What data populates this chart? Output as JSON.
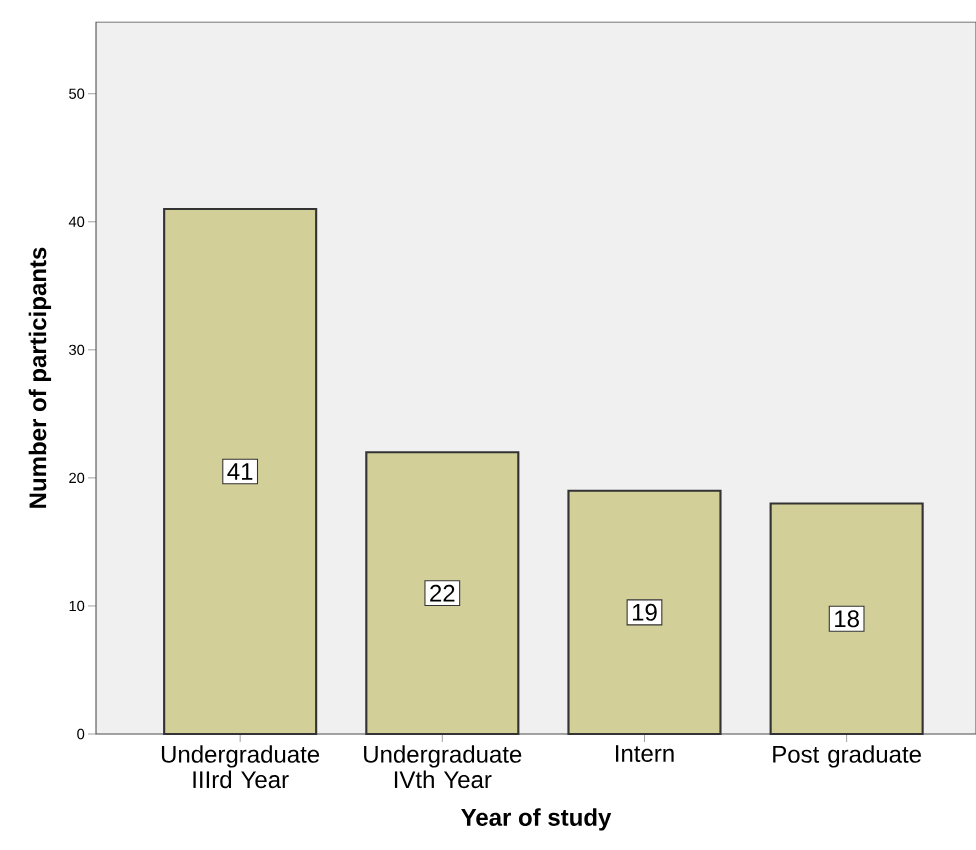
{
  "chart_data": {
    "type": "bar",
    "xlabel": "Year of study",
    "ylabel": "Number of participants",
    "categories": [
      "Undergraduate IIIrd Year",
      "Undergraduate IVth Year",
      "Intern",
      "Post graduate"
    ],
    "values": [
      41,
      22,
      19,
      18
    ],
    "color": "#d3cf98",
    "ylim": [
      0,
      55.6
    ],
    "yticks": [
      0,
      10,
      20,
      30,
      40,
      50
    ],
    "grid": false,
    "data_labels": true
  }
}
